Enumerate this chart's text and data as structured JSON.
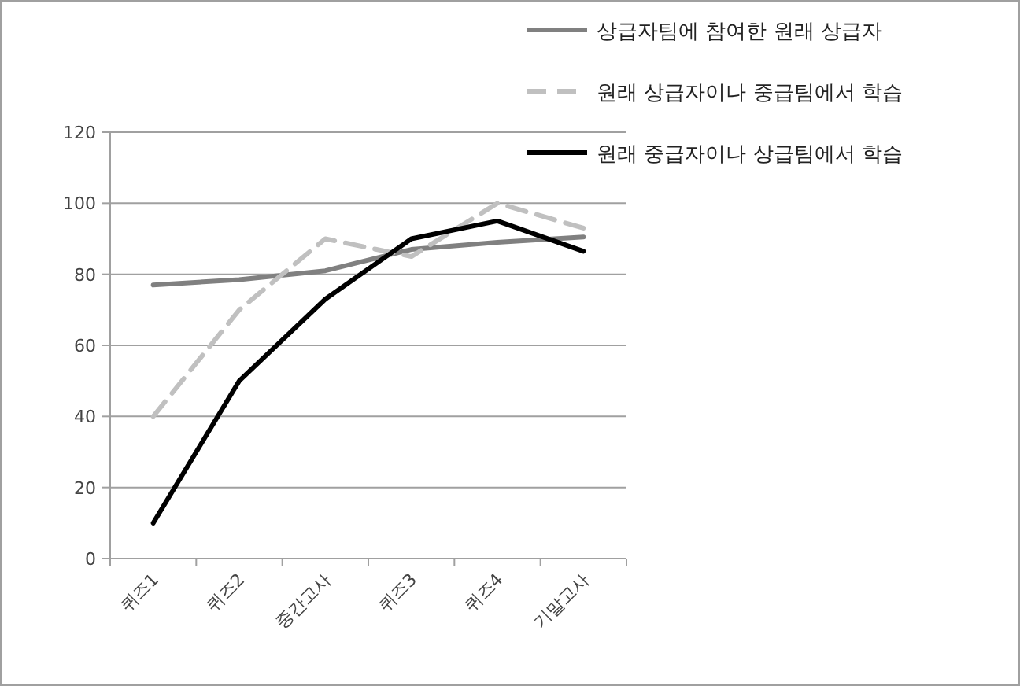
{
  "chart_data": {
    "type": "line",
    "categories": [
      "퀴즈1",
      "퀴즈2",
      "중간고사",
      "퀴즈3",
      "퀴즈4",
      "기말고사"
    ],
    "series": [
      {
        "name": "상급자팀에 참여한 원래 상급자",
        "color": "#808080",
        "line_style": "solid",
        "values": [
          77,
          78.5,
          81,
          87,
          89,
          90.5
        ]
      },
      {
        "name": "원래 상급자이나 중급팀에서 학습",
        "color": "#c0c0c0",
        "line_style": "dashed",
        "values": [
          40,
          70,
          90,
          85,
          100,
          93
        ]
      },
      {
        "name": "원래 중급자이나 상급팀에서 학습",
        "color": "#000000",
        "line_style": "solid",
        "values": [
          10,
          50,
          73,
          90,
          95,
          86.5
        ]
      }
    ],
    "ylim": [
      0,
      120
    ],
    "yticks": [
      0,
      20,
      40,
      60,
      80,
      100,
      120
    ],
    "grid": "y",
    "legend": "top right",
    "marker": "none"
  }
}
